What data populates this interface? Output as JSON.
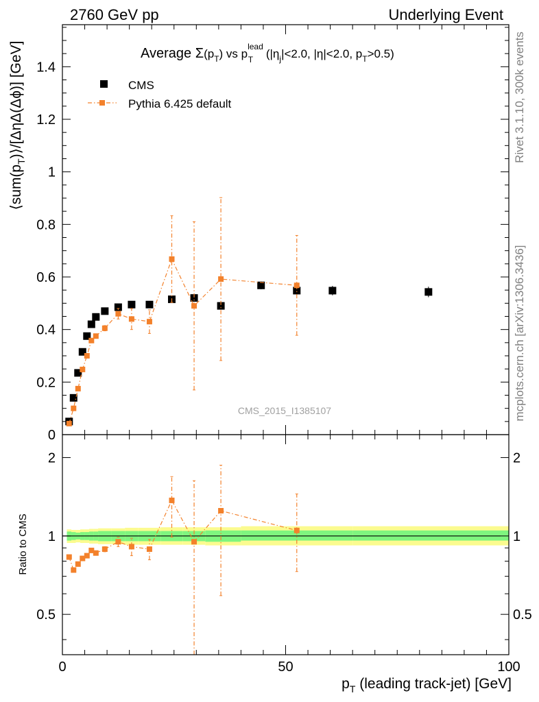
{
  "header": {
    "energy": "2760 GeV pp",
    "process": "Underlying Event"
  },
  "side_labels": {
    "rivet": "Rivet 3.1.10,  300k events",
    "mcplots": "mcplots.cern.ch [arXiv:1306.3436]"
  },
  "chart_data": {
    "type": "scatter",
    "title": {
      "prefix": "Average ",
      "sigma": "Σ",
      "pt_open": "(p",
      "pt_sub": "T",
      "pt_close": ") vs p",
      "lead_sup": "lead",
      "lead_sub": "T",
      "cuts_a": " (|η",
      "cuts_a_sub": "j",
      "cuts_b": "|<2.0, |η|<2.0, p",
      "cuts_b_sub": "T",
      "cuts_c": ">0.5)"
    },
    "ylabel": {
      "a": "⟨sum(p",
      "sub": "T",
      "b": ")⟩/[ΔηΔ(Δϕ)] [GeV]"
    },
    "xlabel": {
      "a": "p",
      "sub": "T",
      "b": " (leading track-jet) [GeV]"
    },
    "ratio_ylabel": "Ratio to CMS",
    "watermark": "CMS_2015_I1385107",
    "legend": {
      "placement": "top-left",
      "data_label": "CMS",
      "mc_label": "Pythia 6.425 default"
    },
    "main_ticks": {
      "y": [
        "0",
        "0.2",
        "0.4",
        "0.6",
        "0.8",
        "1",
        "1.2",
        "1.4"
      ]
    },
    "ratio_ticks": {
      "left": [
        "0.5",
        "1",
        "2"
      ],
      "right": [
        "0.5",
        "1",
        "2"
      ]
    },
    "x_ticks": [
      "0",
      "50",
      "100"
    ],
    "xlim": [
      0,
      100
    ],
    "ylim_main": [
      0,
      1.56
    ],
    "ylim_ratio": [
      0.35,
      2.45
    ],
    "colors": {
      "data": "#000000",
      "mc": "#f3812b",
      "band_inner": "#7ff57f",
      "band_outer": "#fbfb8f"
    },
    "series": [
      {
        "name": "CMS",
        "x": [
          1.5,
          2.5,
          3.5,
          4.5,
          5.5,
          6.5,
          7.5,
          9.5,
          12.5,
          15.5,
          19.5,
          24.5,
          29.5,
          35.5,
          44.5,
          52.5,
          60.5,
          82.0
        ],
        "y": [
          0.05,
          0.14,
          0.235,
          0.315,
          0.375,
          0.42,
          0.448,
          0.47,
          0.485,
          0.495,
          0.495,
          0.515,
          0.52,
          0.49,
          0.568,
          0.548,
          0.548,
          0.543
        ],
        "yerr": [
          0.003,
          0.004,
          0.005,
          0.006,
          0.006,
          0.006,
          0.006,
          0.007,
          0.008,
          0.009,
          0.01,
          0.012,
          0.013,
          0.014,
          0.015,
          0.017,
          0.018,
          0.02
        ]
      },
      {
        "name": "Pythia 6.425 default",
        "x": [
          1.5,
          2.5,
          3.5,
          4.5,
          5.5,
          6.5,
          7.5,
          9.5,
          12.5,
          15.5,
          19.5,
          24.5,
          29.5,
          35.5,
          52.5
        ],
        "y": [
          0.042,
          0.1,
          0.175,
          0.248,
          0.3,
          0.358,
          0.375,
          0.405,
          0.46,
          0.44,
          0.43,
          0.668,
          0.49,
          0.592,
          0.568
        ],
        "yerr": [
          0.003,
          0.004,
          0.005,
          0.006,
          0.006,
          0.007,
          0.008,
          0.01,
          0.02,
          0.04,
          0.045,
          0.165,
          0.32,
          0.31,
          0.19
        ]
      }
    ],
    "ratio": {
      "name": "Pythia 6.425 default",
      "x": [
        1.5,
        2.5,
        3.5,
        4.5,
        5.5,
        6.5,
        7.5,
        9.5,
        12.5,
        15.5,
        19.5,
        24.5,
        29.5,
        35.5,
        52.5
      ],
      "y": [
        0.83,
        0.74,
        0.78,
        0.82,
        0.84,
        0.88,
        0.86,
        0.89,
        0.95,
        0.91,
        0.89,
        1.37,
        0.95,
        1.25,
        1.05
      ],
      "yerr_lo": [
        0.01,
        0.01,
        0.01,
        0.01,
        0.01,
        0.015,
        0.015,
        0.02,
        0.04,
        0.07,
        0.08,
        0.38,
        0.6,
        0.66,
        0.32
      ],
      "yerr_hi": [
        0.01,
        0.01,
        0.01,
        0.01,
        0.01,
        0.015,
        0.015,
        0.02,
        0.04,
        0.07,
        0.08,
        0.32,
        0.68,
        0.62,
        0.4
      ]
    },
    "ratio_band": {
      "edges": [
        1,
        2,
        3,
        4,
        5,
        6,
        7,
        8,
        11,
        14,
        17,
        22,
        27,
        32,
        40,
        50,
        65,
        100
      ],
      "inner_lo": [
        0.96,
        0.965,
        0.97,
        0.965,
        0.965,
        0.96,
        0.96,
        0.955,
        0.955,
        0.955,
        0.955,
        0.955,
        0.955,
        0.95,
        0.96,
        0.96,
        0.96
      ],
      "inner_hi": [
        1.04,
        1.035,
        1.03,
        1.035,
        1.035,
        1.04,
        1.04,
        1.045,
        1.045,
        1.045,
        1.045,
        1.045,
        1.045,
        1.05,
        1.05,
        1.05,
        1.05
      ],
      "outer_lo": [
        0.94,
        0.94,
        0.945,
        0.94,
        0.94,
        0.935,
        0.935,
        0.93,
        0.93,
        0.925,
        0.925,
        0.925,
        0.925,
        0.92,
        0.92,
        0.92,
        0.92
      ],
      "outer_hi": [
        1.06,
        1.055,
        1.055,
        1.06,
        1.06,
        1.065,
        1.065,
        1.07,
        1.07,
        1.075,
        1.075,
        1.08,
        1.08,
        1.08,
        1.09,
        1.09,
        1.09
      ]
    }
  }
}
